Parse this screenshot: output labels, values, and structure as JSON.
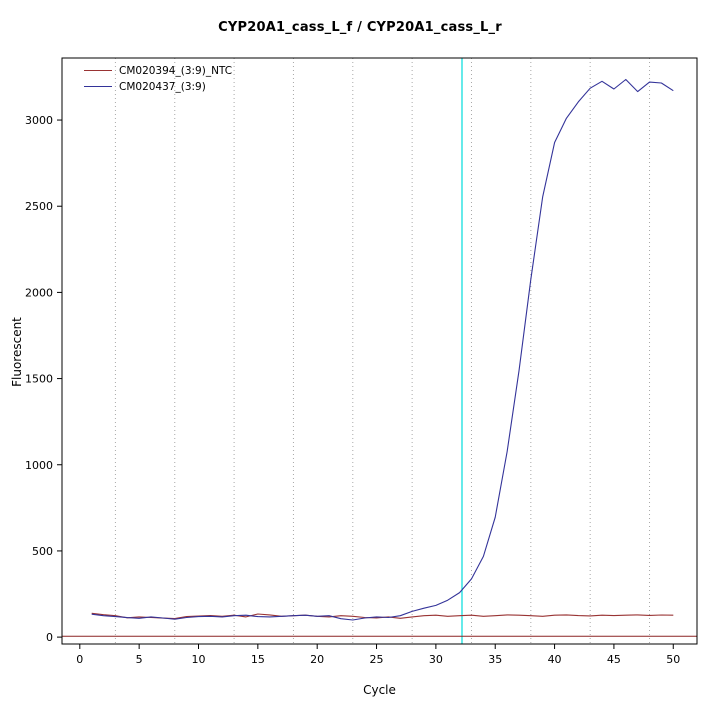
{
  "window": {
    "background": "#ffffff"
  },
  "chart_data": {
    "type": "line",
    "title": "CYP20A1_cass_L_f / CYP20A1_cass_L_r",
    "xlabel": "Cycle",
    "ylabel": "Fluorescent",
    "xlim": [
      -1.5,
      52
    ],
    "ylim": [
      -40,
      3360
    ],
    "xticks": [
      0,
      5,
      10,
      15,
      20,
      25,
      30,
      35,
      40,
      45,
      50
    ],
    "yticks": [
      0,
      500,
      1000,
      1500,
      2000,
      2500,
      3000
    ],
    "gridlines_x": [
      3,
      8,
      13,
      18,
      23,
      28,
      33,
      38,
      43,
      48
    ],
    "grid_on": true,
    "grid_color": "#a8a8a8",
    "frame_color": "#000000",
    "legend_position": "top-left",
    "threshold_cycle_line": {
      "x": 32.2,
      "color": "#00dcdc"
    },
    "baseline": {
      "y": 5,
      "color": "#8b2323"
    },
    "x": [
      1,
      2,
      3,
      4,
      5,
      6,
      7,
      8,
      9,
      10,
      11,
      12,
      13,
      14,
      15,
      16,
      17,
      18,
      19,
      20,
      21,
      22,
      23,
      24,
      25,
      26,
      27,
      28,
      29,
      30,
      31,
      32,
      33,
      34,
      35,
      36,
      37,
      38,
      39,
      40,
      41,
      42,
      43,
      44,
      45,
      46,
      47,
      48,
      49,
      50
    ],
    "series": [
      {
        "name": "CM020394_(3:9)_NTC",
        "color": "#993333",
        "values": [
          138,
          130,
          124,
          112,
          117,
          114,
          110,
          108,
          119,
          122,
          125,
          121,
          127,
          117,
          134,
          129,
          121,
          124,
          127,
          121,
          117,
          124,
          121,
          114,
          111,
          117,
          109,
          117,
          124,
          127,
          121,
          124,
          127,
          121,
          124,
          129,
          127,
          124,
          121,
          127,
          129,
          125,
          123,
          127,
          125,
          127,
          129,
          126,
          128,
          127
        ]
      },
      {
        "name": "CM020437_(3:9)",
        "color": "#333399",
        "values": [
          133,
          124,
          119,
          113,
          109,
          117,
          111,
          104,
          114,
          119,
          121,
          117,
          124,
          127,
          119,
          117,
          121,
          124,
          127,
          121,
          124,
          107,
          99,
          111,
          117,
          114,
          124,
          149,
          168,
          184,
          214,
          258,
          338,
          468,
          695,
          1075,
          1545,
          2075,
          2555,
          2870,
          3010,
          3105,
          3185,
          3225,
          3180,
          3235,
          3165,
          3220,
          3215,
          3170
        ]
      }
    ]
  }
}
